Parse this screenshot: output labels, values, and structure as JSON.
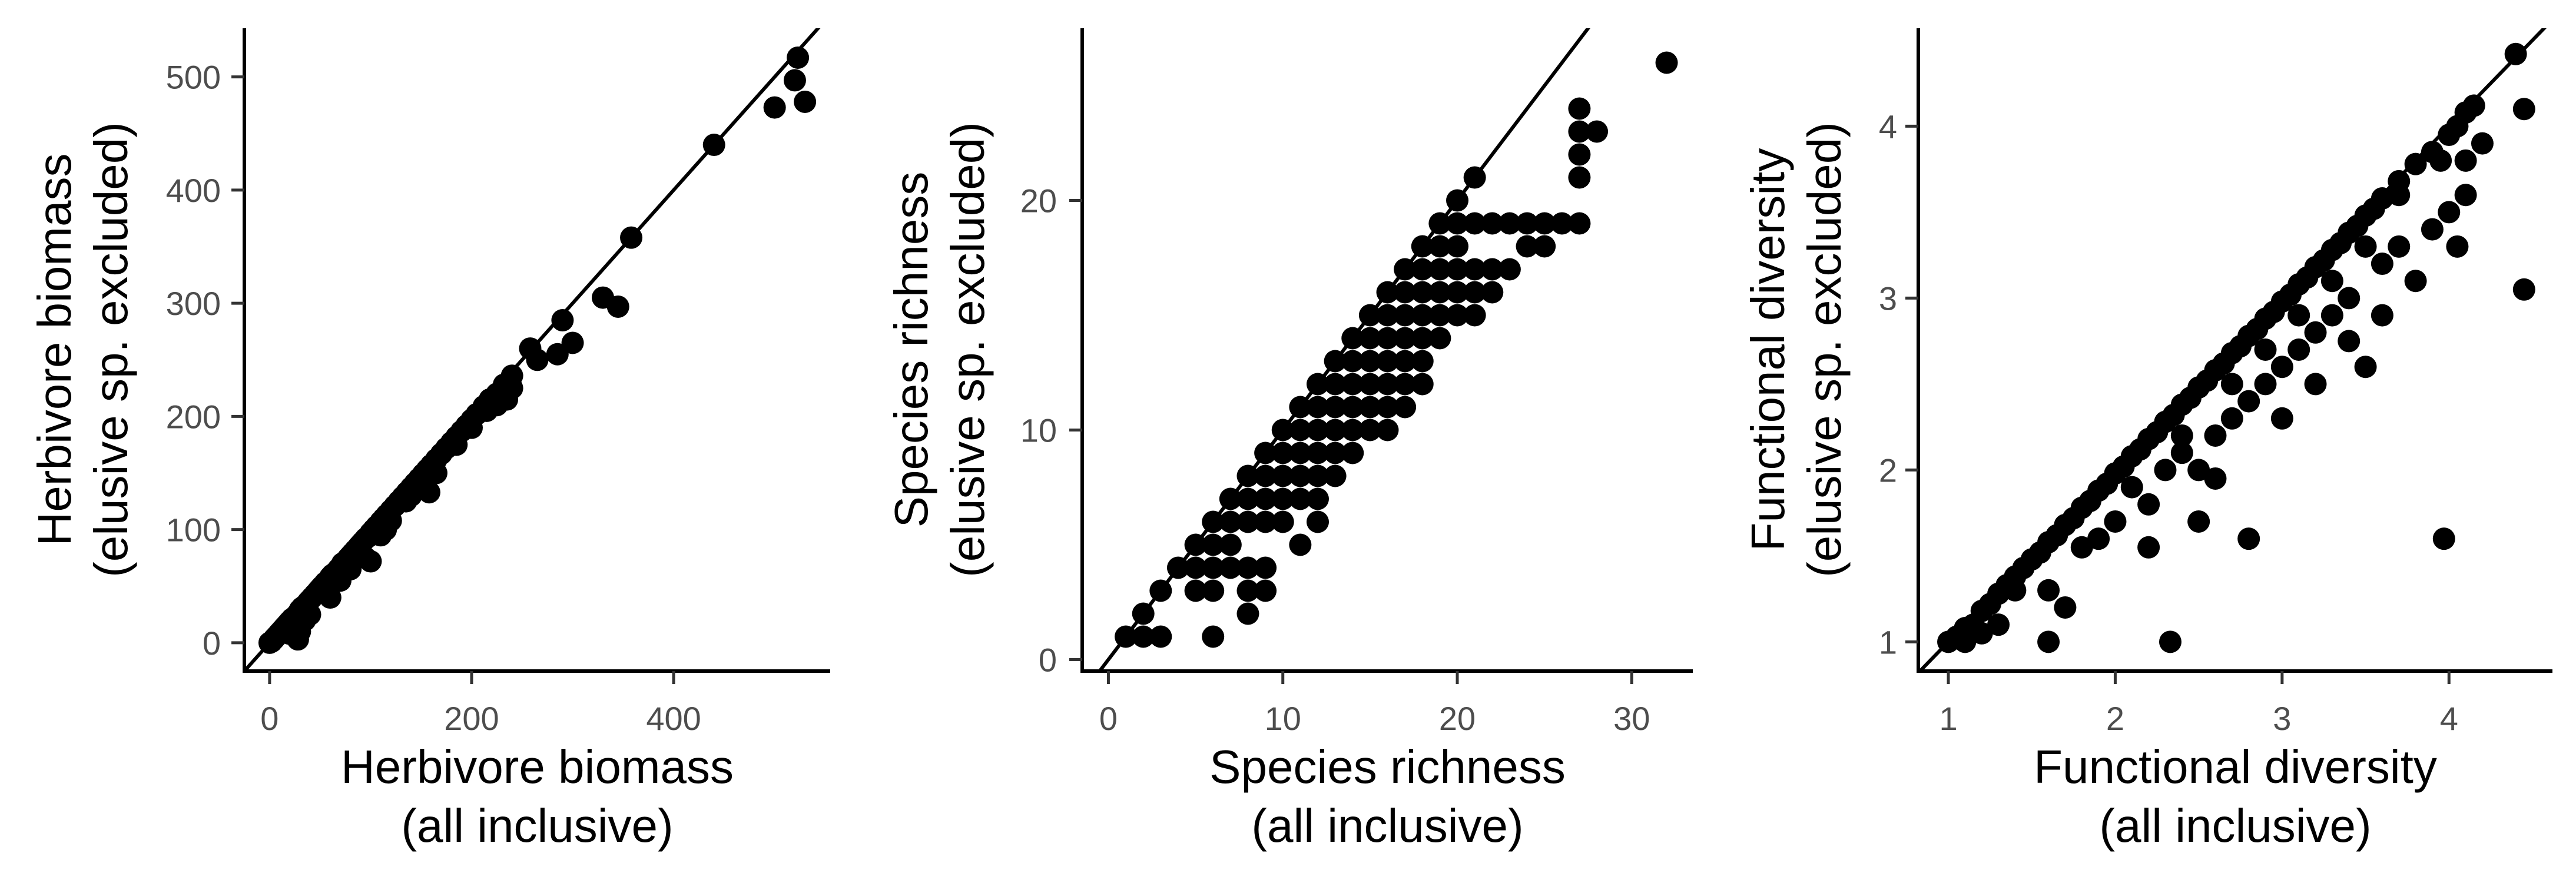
{
  "chart_data": [
    {
      "type": "scatter",
      "xlabel": [
        "Herbivore biomass",
        "(all inclusive)"
      ],
      "ylabel": [
        "Herbivore biomass",
        "(elusive sp. excluded)"
      ],
      "xlim": [
        -25,
        555
      ],
      "ylim": [
        -25,
        543
      ],
      "xticks": [
        0,
        200,
        400
      ],
      "yticks": [
        0,
        100,
        200,
        300,
        400,
        500
      ],
      "reference_line": "y = x",
      "points": [
        [
          0,
          0
        ],
        [
          2,
          1
        ],
        [
          4,
          3
        ],
        [
          5,
          4
        ],
        [
          7,
          6
        ],
        [
          9,
          8
        ],
        [
          10,
          9
        ],
        [
          12,
          11
        ],
        [
          14,
          13
        ],
        [
          15,
          14
        ],
        [
          17,
          16
        ],
        [
          19,
          18
        ],
        [
          20,
          19
        ],
        [
          22,
          21
        ],
        [
          25,
          23
        ],
        [
          28,
          26
        ],
        [
          30,
          29
        ],
        [
          32,
          31
        ],
        [
          35,
          33
        ],
        [
          38,
          36
        ],
        [
          40,
          38
        ],
        [
          42,
          40
        ],
        [
          45,
          43
        ],
        [
          48,
          46
        ],
        [
          50,
          48
        ],
        [
          52,
          50
        ],
        [
          55,
          53
        ],
        [
          58,
          55
        ],
        [
          60,
          58
        ],
        [
          62,
          60
        ],
        [
          65,
          62
        ],
        [
          68,
          65
        ],
        [
          70,
          67
        ],
        [
          72,
          70
        ],
        [
          75,
          72
        ],
        [
          78,
          75
        ],
        [
          80,
          77
        ],
        [
          82,
          79
        ],
        [
          85,
          82
        ],
        [
          88,
          85
        ],
        [
          90,
          87
        ],
        [
          92,
          89
        ],
        [
          95,
          92
        ],
        [
          98,
          94
        ],
        [
          100,
          97
        ],
        [
          103,
          100
        ],
        [
          106,
          103
        ],
        [
          110,
          107
        ],
        [
          113,
          110
        ],
        [
          116,
          113
        ],
        [
          120,
          117
        ],
        [
          124,
          121
        ],
        [
          128,
          125
        ],
        [
          132,
          129
        ],
        [
          136,
          133
        ],
        [
          140,
          137
        ],
        [
          144,
          141
        ],
        [
          148,
          145
        ],
        [
          152,
          149
        ],
        [
          156,
          153
        ],
        [
          160,
          157
        ],
        [
          165,
          162
        ],
        [
          170,
          167
        ],
        [
          175,
          172
        ],
        [
          180,
          177
        ],
        [
          185,
          182
        ],
        [
          190,
          187
        ],
        [
          195,
          192
        ],
        [
          200,
          197
        ],
        [
          205,
          202
        ],
        [
          212,
          209
        ],
        [
          218,
          215
        ],
        [
          225,
          220
        ],
        [
          232,
          228
        ],
        [
          240,
          236
        ],
        [
          28,
          3
        ],
        [
          30,
          10
        ],
        [
          20,
          8
        ],
        [
          35,
          20
        ],
        [
          40,
          25
        ],
        [
          55,
          45
        ],
        [
          60,
          40
        ],
        [
          70,
          55
        ],
        [
          80,
          65
        ],
        [
          95,
          75
        ],
        [
          100,
          72
        ],
        [
          110,
          95
        ],
        [
          115,
          100
        ],
        [
          120,
          108
        ],
        [
          135,
          125
        ],
        [
          140,
          130
        ],
        [
          150,
          140
        ],
        [
          158,
          133
        ],
        [
          165,
          150
        ],
        [
          185,
          175
        ],
        [
          200,
          190
        ],
        [
          215,
          205
        ],
        [
          225,
          210
        ],
        [
          240,
          225
        ],
        [
          235,
          215
        ],
        [
          258,
          260
        ],
        [
          265,
          250
        ],
        [
          285,
          255
        ],
        [
          290,
          285
        ],
        [
          300,
          265
        ],
        [
          330,
          305
        ],
        [
          345,
          297
        ],
        [
          358,
          358
        ],
        [
          440,
          440
        ],
        [
          500,
          473
        ],
        [
          520,
          497
        ],
        [
          523,
          517
        ],
        [
          530,
          478
        ]
      ]
    },
    {
      "type": "scatter",
      "xlabel": [
        "Species richness",
        "(all inclusive)"
      ],
      "ylabel": [
        "Species richness",
        "(elusive sp. excluded)"
      ],
      "xlim": [
        -1.5,
        33.5
      ],
      "ylim": [
        -0.5,
        27.5
      ],
      "xticks": [
        0,
        10,
        20,
        30
      ],
      "yticks": [
        0,
        10,
        20
      ],
      "reference_line": "y = x",
      "points": [
        [
          1,
          1
        ],
        [
          2,
          1
        ],
        [
          2,
          2
        ],
        [
          3,
          1
        ],
        [
          3,
          3
        ],
        [
          4,
          4
        ],
        [
          5,
          3
        ],
        [
          5,
          4
        ],
        [
          5,
          5
        ],
        [
          6,
          1
        ],
        [
          6,
          3
        ],
        [
          6,
          4
        ],
        [
          6,
          5
        ],
        [
          6,
          6
        ],
        [
          7,
          4
        ],
        [
          7,
          5
        ],
        [
          7,
          6
        ],
        [
          7,
          7
        ],
        [
          8,
          2
        ],
        [
          8,
          3
        ],
        [
          8,
          4
        ],
        [
          8,
          6
        ],
        [
          8,
          7
        ],
        [
          8,
          8
        ],
        [
          9,
          3
        ],
        [
          9,
          4
        ],
        [
          9,
          6
        ],
        [
          9,
          7
        ],
        [
          9,
          8
        ],
        [
          9,
          9
        ],
        [
          10,
          6
        ],
        [
          10,
          7
        ],
        [
          10,
          8
        ],
        [
          10,
          9
        ],
        [
          10,
          10
        ],
        [
          11,
          5
        ],
        [
          11,
          7
        ],
        [
          11,
          8
        ],
        [
          11,
          9
        ],
        [
          11,
          10
        ],
        [
          11,
          11
        ],
        [
          12,
          6
        ],
        [
          12,
          7
        ],
        [
          12,
          8
        ],
        [
          12,
          9
        ],
        [
          12,
          10
        ],
        [
          12,
          11
        ],
        [
          12,
          12
        ],
        [
          13,
          8
        ],
        [
          13,
          9
        ],
        [
          13,
          10
        ],
        [
          13,
          11
        ],
        [
          13,
          12
        ],
        [
          13,
          13
        ],
        [
          14,
          9
        ],
        [
          14,
          10
        ],
        [
          14,
          11
        ],
        [
          14,
          12
        ],
        [
          14,
          13
        ],
        [
          14,
          14
        ],
        [
          15,
          10
        ],
        [
          15,
          11
        ],
        [
          15,
          12
        ],
        [
          15,
          13
        ],
        [
          15,
          14
        ],
        [
          15,
          15
        ],
        [
          16,
          10
        ],
        [
          16,
          11
        ],
        [
          16,
          12
        ],
        [
          16,
          13
        ],
        [
          16,
          14
        ],
        [
          16,
          15
        ],
        [
          16,
          16
        ],
        [
          17,
          11
        ],
        [
          17,
          12
        ],
        [
          17,
          13
        ],
        [
          17,
          14
        ],
        [
          17,
          15
        ],
        [
          17,
          16
        ],
        [
          17,
          17
        ],
        [
          18,
          12
        ],
        [
          18,
          13
        ],
        [
          18,
          14
        ],
        [
          18,
          15
        ],
        [
          18,
          16
        ],
        [
          18,
          17
        ],
        [
          18,
          18
        ],
        [
          19,
          14
        ],
        [
          19,
          15
        ],
        [
          19,
          16
        ],
        [
          19,
          17
        ],
        [
          19,
          18
        ],
        [
          19,
          19
        ],
        [
          20,
          15
        ],
        [
          20,
          16
        ],
        [
          20,
          17
        ],
        [
          20,
          18
        ],
        [
          20,
          19
        ],
        [
          20,
          20
        ],
        [
          21,
          15
        ],
        [
          21,
          16
        ],
        [
          21,
          17
        ],
        [
          21,
          19
        ],
        [
          21,
          21
        ],
        [
          22,
          16
        ],
        [
          22,
          17
        ],
        [
          22,
          19
        ],
        [
          23,
          17
        ],
        [
          23,
          19
        ],
        [
          24,
          18
        ],
        [
          24,
          19
        ],
        [
          25,
          18
        ],
        [
          25,
          19
        ],
        [
          26,
          19
        ],
        [
          27,
          19
        ],
        [
          27,
          21
        ],
        [
          27,
          22
        ],
        [
          27,
          23
        ],
        [
          27,
          24
        ],
        [
          28,
          23
        ],
        [
          32,
          26
        ]
      ]
    },
    {
      "type": "scatter",
      "xlabel": [
        "Functional diversity",
        "(all inclusive)"
      ],
      "ylabel": [
        "Functional diversity",
        "(elusive sp. excluded)"
      ],
      "xlim": [
        0.82,
        4.62
      ],
      "ylim": [
        0.83,
        4.57
      ],
      "xticks": [
        1,
        2,
        3,
        4
      ],
      "yticks": [
        1,
        2,
        3,
        4
      ],
      "reference_line": "y = x",
      "points": [
        [
          1.0,
          1.0
        ],
        [
          1.05,
          1.03
        ],
        [
          1.1,
          1.08
        ],
        [
          1.15,
          1.1
        ],
        [
          1.2,
          1.18
        ],
        [
          1.25,
          1.22
        ],
        [
          1.3,
          1.28
        ],
        [
          1.35,
          1.33
        ],
        [
          1.4,
          1.38
        ],
        [
          1.45,
          1.43
        ],
        [
          1.5,
          1.48
        ],
        [
          1.55,
          1.52
        ],
        [
          1.6,
          1.58
        ],
        [
          1.65,
          1.62
        ],
        [
          1.7,
          1.68
        ],
        [
          1.75,
          1.72
        ],
        [
          1.8,
          1.78
        ],
        [
          1.85,
          1.82
        ],
        [
          1.9,
          1.88
        ],
        [
          1.95,
          1.92
        ],
        [
          2.0,
          1.98
        ],
        [
          2.05,
          2.02
        ],
        [
          2.1,
          2.08
        ],
        [
          2.15,
          2.12
        ],
        [
          2.2,
          2.18
        ],
        [
          2.25,
          2.22
        ],
        [
          2.3,
          2.28
        ],
        [
          2.35,
          2.32
        ],
        [
          2.4,
          2.38
        ],
        [
          2.45,
          2.42
        ],
        [
          2.5,
          2.48
        ],
        [
          2.55,
          2.52
        ],
        [
          2.6,
          2.58
        ],
        [
          2.65,
          2.62
        ],
        [
          2.7,
          2.68
        ],
        [
          2.75,
          2.72
        ],
        [
          2.8,
          2.78
        ],
        [
          2.85,
          2.82
        ],
        [
          2.9,
          2.88
        ],
        [
          2.95,
          2.92
        ],
        [
          3.0,
          2.98
        ],
        [
          3.05,
          3.02
        ],
        [
          3.1,
          3.08
        ],
        [
          3.15,
          3.12
        ],
        [
          3.2,
          3.18
        ],
        [
          3.25,
          3.22
        ],
        [
          3.3,
          3.28
        ],
        [
          3.35,
          3.32
        ],
        [
          3.4,
          3.38
        ],
        [
          3.45,
          3.42
        ],
        [
          3.5,
          3.48
        ],
        [
          3.55,
          3.52
        ],
        [
          3.6,
          3.58
        ],
        [
          3.7,
          3.68
        ],
        [
          3.8,
          3.78
        ],
        [
          3.9,
          3.85
        ],
        [
          4.0,
          3.95
        ],
        [
          4.05,
          4.0
        ],
        [
          4.1,
          4.08
        ],
        [
          4.15,
          4.12
        ],
        [
          4.4,
          4.42
        ],
        [
          1.1,
          1.0
        ],
        [
          1.2,
          1.05
        ],
        [
          1.3,
          1.1
        ],
        [
          1.4,
          1.3
        ],
        [
          1.6,
          1.3
        ],
        [
          1.6,
          1.0
        ],
        [
          1.7,
          1.2
        ],
        [
          1.8,
          1.55
        ],
        [
          1.9,
          1.6
        ],
        [
          2.0,
          1.7
        ],
        [
          2.1,
          1.9
        ],
        [
          2.2,
          1.8
        ],
        [
          2.3,
          2.0
        ],
        [
          2.4,
          2.1
        ],
        [
          2.5,
          1.7
        ],
        [
          2.5,
          2.0
        ],
        [
          2.6,
          2.2
        ],
        [
          2.7,
          2.3
        ],
        [
          2.8,
          2.4
        ],
        [
          2.8,
          1.6
        ],
        [
          2.9,
          2.5
        ],
        [
          3.0,
          2.6
        ],
        [
          3.1,
          2.7
        ],
        [
          3.2,
          2.8
        ],
        [
          3.3,
          2.9
        ],
        [
          3.4,
          3.0
        ],
        [
          3.5,
          2.6
        ],
        [
          3.6,
          3.2
        ],
        [
          3.7,
          3.3
        ],
        [
          3.8,
          3.1
        ],
        [
          3.9,
          3.4
        ],
        [
          4.0,
          3.5
        ],
        [
          4.1,
          3.6
        ],
        [
          4.2,
          3.9
        ],
        [
          4.45,
          3.05
        ],
        [
          4.45,
          4.1
        ],
        [
          3.97,
          1.6
        ],
        [
          2.33,
          1.0
        ],
        [
          2.2,
          1.55
        ],
        [
          2.6,
          1.95
        ],
        [
          2.4,
          2.2
        ],
        [
          3.0,
          2.3
        ],
        [
          3.2,
          2.5
        ],
        [
          3.4,
          2.75
        ],
        [
          3.6,
          2.9
        ],
        [
          3.1,
          2.9
        ],
        [
          2.9,
          2.7
        ],
        [
          2.7,
          2.5
        ],
        [
          3.3,
          3.1
        ],
        [
          3.5,
          3.3
        ],
        [
          3.7,
          3.6
        ],
        [
          3.95,
          3.8
        ],
        [
          4.05,
          3.3
        ],
        [
          4.1,
          3.8
        ]
      ]
    }
  ]
}
